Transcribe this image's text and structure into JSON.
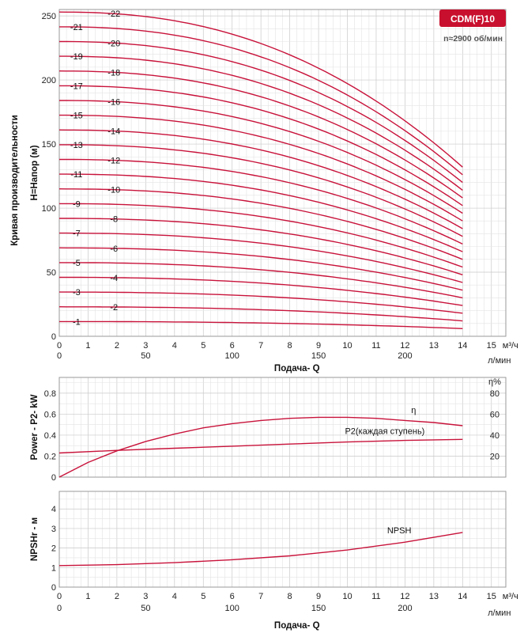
{
  "colors": {
    "curve": "#c8123a",
    "badge_bg": "#c8102e",
    "badge_text": "#ffffff"
  },
  "badge": {
    "model": "CDM(F)10",
    "speed": "n≈2900 об/мин"
  },
  "y_side_label": "Кривая производительности",
  "chart_data": [
    {
      "id": "head",
      "type": "line",
      "ylabel": "H=Напор (м)",
      "xlabel": "Подача- Q",
      "x_unit_m3h": "м³/ч",
      "x_unit_lmin": "л/мин",
      "xlim": [
        0,
        15.5
      ],
      "ylim": [
        0,
        255
      ],
      "y_ticks": [
        0,
        50,
        100,
        150,
        200,
        250
      ],
      "x_ticks_m3h": [
        0,
        1,
        2,
        3,
        4,
        5,
        6,
        7,
        8,
        9,
        10,
        11,
        12,
        13,
        14,
        15
      ],
      "x_ticks_lmin": [
        0,
        50,
        100,
        150,
        200
      ],
      "grid": true,
      "series_head_at_zero_flow": [
        11.5,
        23,
        34.5,
        46,
        57.5,
        69,
        80.5,
        92,
        103.5,
        115,
        126.5,
        138,
        149.5,
        161,
        172.5,
        184,
        195.5,
        207,
        218.5,
        230,
        241.5,
        253
      ],
      "head_at_14_m3h": [
        6,
        12,
        18,
        24,
        30,
        36,
        42,
        48,
        54,
        60,
        66,
        72,
        78,
        84,
        90,
        96,
        102,
        108,
        114,
        120,
        126,
        132
      ],
      "labels": [
        "-1",
        "-2",
        "-3",
        "-4",
        "-5",
        "-6",
        "-7",
        "-8",
        "-9",
        "-10",
        "-11",
        "-12",
        "-13",
        "-14",
        "-15",
        "-16",
        "-17",
        "-18",
        "-19",
        "-20",
        "-21",
        "-22"
      ],
      "flow_m3h": [
        0,
        1,
        2,
        3,
        4,
        5,
        6,
        7,
        8,
        9,
        10,
        11,
        12,
        13,
        14
      ]
    },
    {
      "id": "power",
      "type": "line",
      "ylabel": "Power - P2- kW",
      "ylabel_right": "η%",
      "xlim": [
        0,
        15.5
      ],
      "ylim": [
        0,
        0.95
      ],
      "y_ticks": [
        0,
        0.2,
        0.4,
        0.6,
        0.8
      ],
      "y_ticks_right": [
        20,
        40,
        60,
        80
      ],
      "grid": true,
      "series": [
        {
          "name": "η",
          "x": [
            0,
            1,
            2,
            3,
            4,
            5,
            6,
            7,
            8,
            9,
            10,
            11,
            12,
            13,
            14
          ],
          "values": [
            0,
            14,
            25,
            34,
            41,
            47,
            51,
            54,
            56,
            57,
            57,
            56,
            54,
            52,
            49
          ]
        },
        {
          "name": "P2(каждая ступень)",
          "x": [
            0,
            2,
            4,
            6,
            8,
            10,
            12,
            14
          ],
          "values": [
            0.23,
            0.255,
            0.275,
            0.295,
            0.315,
            0.335,
            0.35,
            0.36
          ]
        }
      ]
    },
    {
      "id": "npsh",
      "type": "line",
      "ylabel": "NPSHr - м",
      "xlabel": "Подача- Q",
      "x_unit_m3h": "м³/ч",
      "x_unit_lmin": "л/мин",
      "xlim": [
        0,
        15.5
      ],
      "ylim": [
        0,
        4.9
      ],
      "y_ticks": [
        0,
        1,
        2,
        3,
        4
      ],
      "x_ticks_m3h": [
        0,
        1,
        2,
        3,
        4,
        5,
        6,
        7,
        8,
        9,
        10,
        11,
        12,
        13,
        14,
        15
      ],
      "x_ticks_lmin": [
        0,
        50,
        100,
        150,
        200
      ],
      "grid": true,
      "series": [
        {
          "name": "NPSH",
          "x": [
            0,
            2,
            4,
            6,
            8,
            10,
            12,
            14
          ],
          "values": [
            1.1,
            1.15,
            1.25,
            1.4,
            1.6,
            1.9,
            2.3,
            2.8
          ]
        }
      ]
    }
  ]
}
